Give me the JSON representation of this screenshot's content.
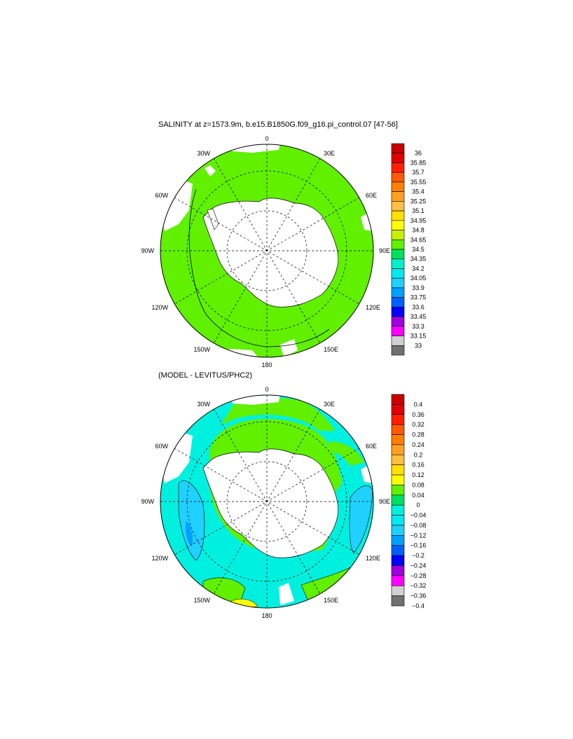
{
  "panels": [
    {
      "title": "SALINITY at z=1573.9m, b.e15.B1850G.f09_g16.pi_control.07 [47-56]",
      "lon_labels": [
        "0",
        "30E",
        "60E",
        "90E",
        "120E",
        "150E",
        "180",
        "150W",
        "120W",
        "90W",
        "60W",
        "30W"
      ],
      "colorbar": {
        "labels": [
          "36",
          "35.85",
          "35.7",
          "35.55",
          "35.4",
          "35.25",
          "35.1",
          "34.95",
          "34.8",
          "34.65",
          "34.5",
          "34.35",
          "34.2",
          "34.05",
          "33.9",
          "33.75",
          "33.6",
          "33.45",
          "33.3",
          "33.15",
          "33"
        ],
        "colors": [
          "#c80000",
          "#e00000",
          "#ff2000",
          "#ff5a00",
          "#ff8000",
          "#ffa020",
          "#ffc040",
          "#ffe000",
          "#ffff00",
          "#c8f000",
          "#60f000",
          "#00e060",
          "#00f0c8",
          "#00e8f0",
          "#20d0ff",
          "#00a0ff",
          "#0060ff",
          "#0000ff",
          "#a000e0",
          "#ff00ff",
          "#d0d0d0",
          "#707070"
        ]
      },
      "ocean_color": "#60f000"
    },
    {
      "title": "(MODEL - LEVITUS/PHC2)",
      "lon_labels": [
        "0",
        "30E",
        "60E",
        "90E",
        "120E",
        "150E",
        "180",
        "150W",
        "120W",
        "90W",
        "60W",
        "30W"
      ],
      "colorbar": {
        "labels": [
          "0.4",
          "0.36",
          "0.32",
          "0.28",
          "0.24",
          "0.2",
          "0.16",
          "0.12",
          "0.08",
          "0.04",
          "0",
          "−0.04",
          "−0.08",
          "−0.12",
          "−0.16",
          "−0.2",
          "−0.24",
          "−0.28",
          "−0.32",
          "−0.36",
          "−0.4"
        ],
        "colors": [
          "#c80000",
          "#e00000",
          "#ff2000",
          "#ff5a00",
          "#ff8000",
          "#ffa020",
          "#ffc040",
          "#ffe000",
          "#ffff00",
          "#60f000",
          "#00e060",
          "#00f0e0",
          "#00e8f0",
          "#20d0ff",
          "#00a0ff",
          "#0060ff",
          "#0000ff",
          "#a000e0",
          "#ff00ff",
          "#d0d0d0",
          "#707070"
        ]
      },
      "ocean_color": "#00f0e0"
    }
  ]
}
